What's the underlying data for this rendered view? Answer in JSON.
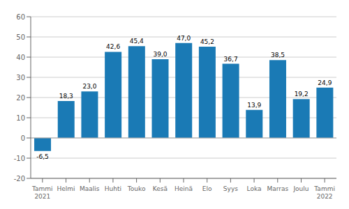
{
  "chart_data": {
    "type": "bar",
    "categories": [
      "Tammi\n2021",
      "Helmi",
      "Maalis",
      "Huhti",
      "Touko",
      "Kesä",
      "Heinä",
      "Elo",
      "Syys",
      "Loka",
      "Marras",
      "Joulu",
      "Tammi\n2022"
    ],
    "values": [
      -6.5,
      18.3,
      23.0,
      42.6,
      45.4,
      39.0,
      47.0,
      45.2,
      36.7,
      13.9,
      38.5,
      19.2,
      24.9
    ],
    "value_labels": [
      "-6,5",
      "18,3",
      "23,0",
      "42,6",
      "45,4",
      "39,0",
      "47,0",
      "45,2",
      "36,7",
      "13,9",
      "38,5",
      "19,2",
      "24,9"
    ],
    "color": "#1a7ab5",
    "ylim": [
      -20,
      60
    ],
    "yticks": [
      -20,
      -10,
      0,
      10,
      20,
      30,
      40,
      50,
      60
    ],
    "grid": true,
    "data_labels": true
  }
}
